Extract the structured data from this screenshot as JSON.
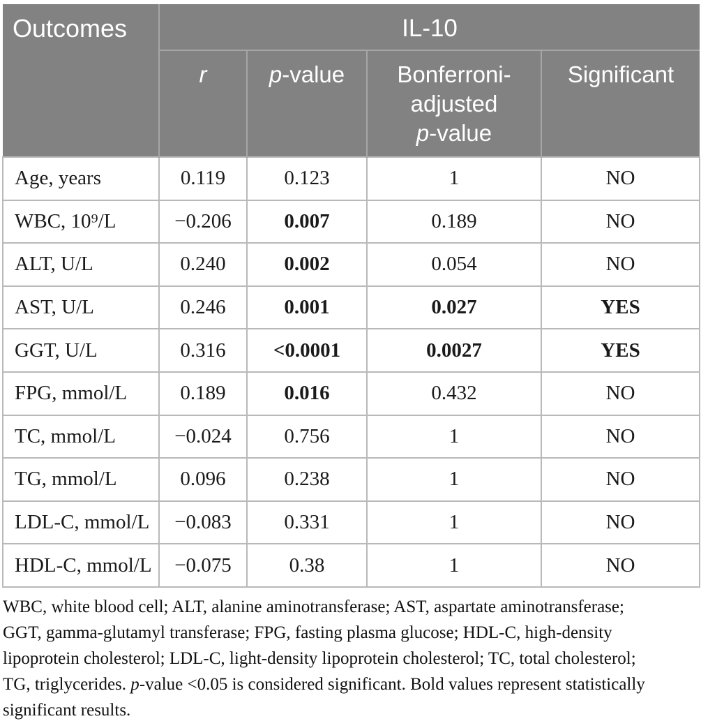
{
  "colors": {
    "header_bg": "#828282",
    "header_text": "#ffffff",
    "header_divider": "#a6a6a6",
    "body_border": "#b9b9b9",
    "body_text": "#1a1a1a",
    "page_bg": "#ffffff"
  },
  "table": {
    "header": {
      "outcomes": "Outcomes",
      "group": "IL-10",
      "sub": [
        {
          "name": "r",
          "lines": [
            [
              {
                "t": "r",
                "i": true
              }
            ]
          ]
        },
        {
          "name": "p-value",
          "lines": [
            [
              {
                "t": "p",
                "i": true
              },
              {
                "t": "-value"
              }
            ]
          ]
        },
        {
          "name": "bonferroni-adjusted-p-value",
          "lines": [
            [
              {
                "t": "Bonferroni-"
              }
            ],
            [
              {
                "t": "adjusted"
              }
            ],
            [
              {
                "t": "p",
                "i": true
              },
              {
                "t": "-value"
              }
            ]
          ]
        },
        {
          "name": "significant",
          "lines": [
            [
              {
                "t": "Significant"
              }
            ]
          ]
        }
      ]
    },
    "rows": [
      {
        "outcome": "Age, years",
        "r": "0.119",
        "p_value": "0.123",
        "bonferroni": "1",
        "significant": "NO",
        "bold": []
      },
      {
        "outcome": "WBC, 10⁹/L",
        "r": "−0.206",
        "p_value": "0.007",
        "bonferroni": "0.189",
        "significant": "NO",
        "bold": [
          "p_value"
        ]
      },
      {
        "outcome": "ALT, U/L",
        "r": "0.240",
        "p_value": "0.002",
        "bonferroni": "0.054",
        "significant": "NO",
        "bold": [
          "p_value"
        ]
      },
      {
        "outcome": "AST, U/L",
        "r": "0.246",
        "p_value": "0.001",
        "bonferroni": "0.027",
        "significant": "YES",
        "bold": [
          "p_value",
          "bonferroni",
          "significant"
        ]
      },
      {
        "outcome": "GGT, U/L",
        "r": "0.316",
        "p_value": "<0.0001",
        "bonferroni": "0.0027",
        "significant": "YES",
        "bold": [
          "p_value",
          "bonferroni",
          "significant"
        ]
      },
      {
        "outcome": "FPG, mmol/L",
        "r": "0.189",
        "p_value": "0.016",
        "bonferroni": "0.432",
        "significant": "NO",
        "bold": [
          "p_value"
        ]
      },
      {
        "outcome": "TC, mmol/L",
        "r": "−0.024",
        "p_value": "0.756",
        "bonferroni": "1",
        "significant": "NO",
        "bold": []
      },
      {
        "outcome": "TG, mmol/L",
        "r": "0.096",
        "p_value": "0.238",
        "bonferroni": "1",
        "significant": "NO",
        "bold": []
      },
      {
        "outcome": "LDL-C, mmol/L",
        "r": "−0.083",
        "p_value": "0.331",
        "bonferroni": "1",
        "significant": "NO",
        "bold": []
      },
      {
        "outcome": "HDL-C, mmol/L",
        "r": "−0.075",
        "p_value": "0.38",
        "bonferroni": "1",
        "significant": "NO",
        "bold": []
      }
    ]
  },
  "footnote": {
    "lines": [
      [
        {
          "t": "WBC, white blood cell; ALT, alanine aminotransferase; AST, aspartate aminotransferase;"
        }
      ],
      [
        {
          "t": "GGT, gamma-glutamyl transferase; FPG, fasting plasma glucose; HDL-C, high-density"
        }
      ],
      [
        {
          "t": "lipoprotein cholesterol; LDL-C, light-density lipoprotein cholesterol; TC, total cholesterol;"
        }
      ],
      [
        {
          "t": "TG, triglycerides. "
        },
        {
          "t": "p",
          "i": true
        },
        {
          "t": "-value <0.05 is considered significant. Bold values represent statistically"
        }
      ],
      [
        {
          "t": "significant results."
        }
      ]
    ]
  }
}
